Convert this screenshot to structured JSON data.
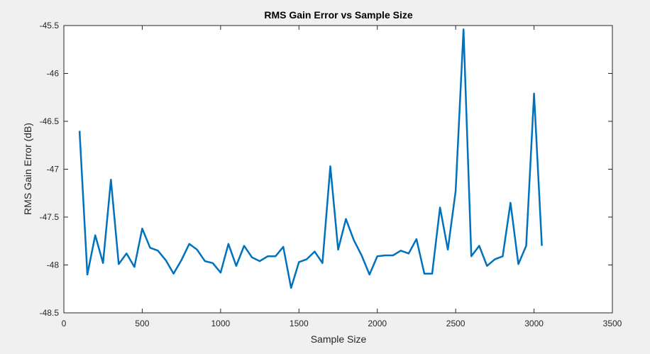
{
  "chart_data": {
    "type": "line",
    "title": "RMS Gain Error vs Sample Size",
    "xlabel": "Sample Size",
    "ylabel": "RMS Gain Error (dB)",
    "xlim": [
      0,
      3500
    ],
    "ylim": [
      -48.5,
      -45.5
    ],
    "x_ticks": [
      0,
      500,
      1000,
      1500,
      2000,
      2500,
      3000,
      3500
    ],
    "y_ticks": [
      -45.5,
      -46,
      -46.5,
      -47,
      -47.5,
      -48,
      -48.5
    ],
    "x_tick_labels": [
      "0",
      "500",
      "1000",
      "1500",
      "2000",
      "2500",
      "3000",
      "3500"
    ],
    "y_tick_labels": [
      "-45.5",
      "-46",
      "-46.5",
      "-47",
      "-47.5",
      "-48",
      "-48.5"
    ],
    "grid": false,
    "legend": "none",
    "line_color": "#0072bd",
    "axes_background": "#ffffff",
    "figure_background": "#f0f0f0",
    "series": [
      {
        "x": [
          100,
          150,
          200,
          250,
          300,
          350,
          400,
          450,
          500,
          550,
          600,
          650,
          700,
          750,
          800,
          850,
          900,
          950,
          1000,
          1050,
          1100,
          1150,
          1200,
          1250,
          1300,
          1350,
          1400,
          1450,
          1500,
          1550,
          1600,
          1650,
          1700,
          1750,
          1800,
          1850,
          1900,
          1950,
          2000,
          2050,
          2100,
          2150,
          2200,
          2250,
          2300,
          2350,
          2400,
          2450,
          2500,
          2550,
          2600,
          2650,
          2700,
          2750,
          2800,
          2850,
          2900,
          2950,
          3000,
          3050
        ],
        "y": [
          -46.6,
          -48.1,
          -47.69,
          -47.98,
          -47.11,
          -47.99,
          -47.88,
          -48.02,
          -47.62,
          -47.82,
          -47.85,
          -47.95,
          -48.09,
          -47.95,
          -47.78,
          -47.84,
          -47.96,
          -47.98,
          -48.08,
          -47.78,
          -48.01,
          -47.8,
          -47.92,
          -47.96,
          -47.91,
          -47.91,
          -47.81,
          -48.24,
          -47.97,
          -47.94,
          -47.86,
          -47.98,
          -46.97,
          -47.84,
          -47.52,
          -47.74,
          -47.9,
          -48.1,
          -47.91,
          -47.9,
          -47.9,
          -47.85,
          -47.88,
          -47.73,
          -48.09,
          -48.09,
          -47.4,
          -47.84,
          -47.23,
          -45.54,
          -47.91,
          -47.8,
          -48.01,
          -47.94,
          -47.91,
          -47.35,
          -47.99,
          -47.8,
          -46.21,
          -47.8
        ]
      }
    ]
  }
}
